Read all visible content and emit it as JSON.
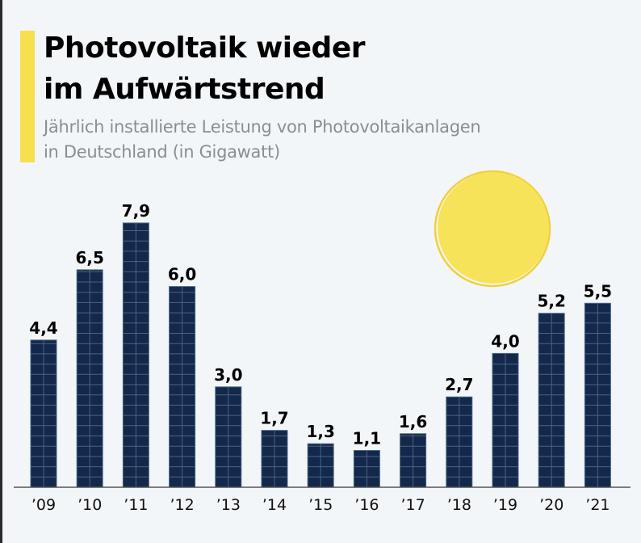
{
  "header": {
    "title_line1": "Photovoltaik wieder",
    "title_line2": "im Aufwärtstrend",
    "subtitle_line1": "Jährlich installierte Leistung von Photovoltaikanlagen",
    "subtitle_line2": "in Deutschland (in Gigawatt)"
  },
  "colors": {
    "bar": "#13284a",
    "bar_grid": "#4a6485",
    "accent": "#f7df4f",
    "sun": "#f7e35a",
    "sun_outline": "#f2cf3a",
    "axis": "#555555"
  },
  "chart_data": {
    "type": "bar",
    "title": "Photovoltaik wieder im Aufwärtstrend",
    "subtitle": "Jährlich installierte Leistung von Photovoltaikanlagen in Deutschland (in Gigawatt)",
    "xlabel": "",
    "ylabel": "Gigawatt",
    "categories": [
      "’09",
      "’10",
      "’11",
      "’12",
      "’13",
      "’14",
      "’15",
      "’16",
      "’17",
      "’18",
      "’19",
      "’20",
      "’21"
    ],
    "values": [
      4.4,
      6.5,
      7.9,
      6.0,
      3.0,
      1.7,
      1.3,
      1.1,
      1.6,
      2.7,
      4.0,
      5.2,
      5.5
    ],
    "value_labels": [
      "4,4",
      "6,5",
      "7,9",
      "6,0",
      "3,0",
      "1,7",
      "1,3",
      "1,1",
      "1,6",
      "2,7",
      "4,0",
      "5,2",
      "5,5"
    ],
    "ylim": [
      0,
      8
    ],
    "grid": false,
    "legend": "none",
    "decoration": "sun"
  }
}
